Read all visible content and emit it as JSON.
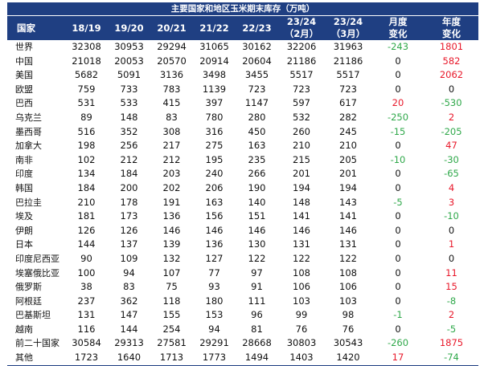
{
  "title": "主要国家和地区玉米期末库存（万吨）",
  "headers": [
    {
      "line1": "国家",
      "line2": ""
    },
    {
      "line1": "18/19",
      "line2": ""
    },
    {
      "line1": "19/20",
      "line2": ""
    },
    {
      "line1": "20/21",
      "line2": ""
    },
    {
      "line1": "21/22",
      "line2": ""
    },
    {
      "line1": "22/23",
      "line2": ""
    },
    {
      "line1": "23/24",
      "line2": "（2月）"
    },
    {
      "line1": "23/24",
      "line2": "（3月）"
    },
    {
      "line1": "月度",
      "line2": "变化"
    },
    {
      "line1": "年度",
      "line2": "变化"
    }
  ],
  "colors": {
    "header_bg": "#1f3f82",
    "positive": "#e8182a",
    "negative": "#2fa84a"
  },
  "rows": [
    {
      "country": "世界",
      "values": [
        "32308",
        "30953",
        "29294",
        "31065",
        "30162",
        "32206",
        "31963"
      ],
      "monthly": "-243",
      "yearly": "1801"
    },
    {
      "country": "中国",
      "values": [
        "21018",
        "20053",
        "20570",
        "20914",
        "20604",
        "21186",
        "21186"
      ],
      "monthly": "0",
      "yearly": "582"
    },
    {
      "country": "美国",
      "values": [
        "5682",
        "5091",
        "3136",
        "3498",
        "3455",
        "5517",
        "5517"
      ],
      "monthly": "0",
      "yearly": "2062"
    },
    {
      "country": "欧盟",
      "values": [
        "759",
        "733",
        "783",
        "1139",
        "723",
        "723",
        "723"
      ],
      "monthly": "0",
      "yearly": "0"
    },
    {
      "country": "巴西",
      "values": [
        "531",
        "533",
        "415",
        "397",
        "1147",
        "597",
        "617"
      ],
      "monthly": "20",
      "yearly": "-530"
    },
    {
      "country": "乌克兰",
      "values": [
        "89",
        "148",
        "83",
        "780",
        "280",
        "532",
        "282"
      ],
      "monthly": "-250",
      "yearly": "2"
    },
    {
      "country": "墨西哥",
      "values": [
        "516",
        "352",
        "308",
        "316",
        "450",
        "260",
        "245"
      ],
      "monthly": "-15",
      "yearly": "-205"
    },
    {
      "country": "加拿大",
      "values": [
        "198",
        "256",
        "217",
        "275",
        "163",
        "210",
        "210"
      ],
      "monthly": "0",
      "yearly": "47"
    },
    {
      "country": "南非",
      "values": [
        "102",
        "212",
        "212",
        "195",
        "235",
        "215",
        "205"
      ],
      "monthly": "-10",
      "yearly": "-30"
    },
    {
      "country": "印度",
      "values": [
        "134",
        "184",
        "203",
        "240",
        "266",
        "201",
        "201"
      ],
      "monthly": "0",
      "yearly": "-65"
    },
    {
      "country": "韩国",
      "values": [
        "184",
        "200",
        "202",
        "206",
        "190",
        "194",
        "194"
      ],
      "monthly": "0",
      "yearly": "4"
    },
    {
      "country": "巴拉圭",
      "values": [
        "210",
        "178",
        "191",
        "163",
        "140",
        "148",
        "143"
      ],
      "monthly": "-5",
      "yearly": "3"
    },
    {
      "country": "埃及",
      "values": [
        "181",
        "173",
        "136",
        "156",
        "151",
        "141",
        "141"
      ],
      "monthly": "0",
      "yearly": "-10"
    },
    {
      "country": "伊朗",
      "values": [
        "126",
        "126",
        "146",
        "146",
        "146",
        "146",
        "146"
      ],
      "monthly": "0",
      "yearly": "0"
    },
    {
      "country": "日本",
      "values": [
        "144",
        "137",
        "139",
        "136",
        "130",
        "131",
        "131"
      ],
      "monthly": "0",
      "yearly": "1"
    },
    {
      "country": "印度尼西亚",
      "values": [
        "90",
        "109",
        "132",
        "127",
        "122",
        "122",
        "122"
      ],
      "monthly": "0",
      "yearly": "0"
    },
    {
      "country": "埃塞俄比亚",
      "values": [
        "100",
        "94",
        "107",
        "77",
        "97",
        "108",
        "108"
      ],
      "monthly": "0",
      "yearly": "11"
    },
    {
      "country": "俄罗斯",
      "values": [
        "38",
        "83",
        "75",
        "93",
        "91",
        "106",
        "106"
      ],
      "monthly": "0",
      "yearly": "15"
    },
    {
      "country": "阿根廷",
      "values": [
        "237",
        "362",
        "118",
        "180",
        "111",
        "103",
        "103"
      ],
      "monthly": "0",
      "yearly": "-8"
    },
    {
      "country": "巴基斯坦",
      "values": [
        "131",
        "147",
        "155",
        "153",
        "96",
        "99",
        "98"
      ],
      "monthly": "-1",
      "yearly": "2"
    },
    {
      "country": "越南",
      "values": [
        "116",
        "144",
        "254",
        "94",
        "81",
        "76",
        "76"
      ],
      "monthly": "0",
      "yearly": "-5"
    },
    {
      "country": "前二十国家",
      "values": [
        "30584",
        "29313",
        "27581",
        "29291",
        "28668",
        "30803",
        "30543"
      ],
      "monthly": "-260",
      "yearly": "1875"
    },
    {
      "country": "其他",
      "values": [
        "1723",
        "1640",
        "1713",
        "1773",
        "1494",
        "1403",
        "1420"
      ],
      "monthly": "17",
      "yearly": "-74"
    }
  ]
}
